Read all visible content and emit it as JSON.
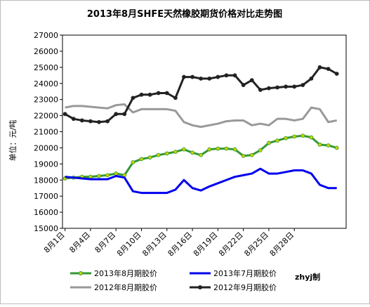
{
  "chart_data": {
    "type": "line",
    "title": "2013年8月SHFE天然橡胶期货价格对比走势图",
    "y_label": "单位：元/吨",
    "annotation": "zhyj制",
    "x": [
      0,
      1,
      2,
      3,
      4,
      5,
      6,
      7,
      8,
      9,
      10,
      11,
      12,
      13,
      14,
      15,
      16,
      17,
      18,
      19,
      20,
      21,
      22,
      23,
      24,
      25,
      26,
      27,
      28,
      29,
      30,
      31,
      32
    ],
    "xlim": [
      -0.3,
      33.1
    ],
    "xticks": [
      {
        "value": 0,
        "label": "8月1日"
      },
      {
        "value": 3,
        "label": "8月4日"
      },
      {
        "value": 6,
        "label": "8月7日"
      },
      {
        "value": 9,
        "label": "8月10日"
      },
      {
        "value": 12,
        "label": "8月13日"
      },
      {
        "value": 15,
        "label": "8月16日"
      },
      {
        "value": 18,
        "label": "8月19日"
      },
      {
        "value": 21,
        "label": "8月22日"
      },
      {
        "value": 24,
        "label": "8月25日"
      },
      {
        "value": 27,
        "label": "8月28日"
      }
    ],
    "ylim": [
      15000,
      27000
    ],
    "yticks": [
      15000,
      16000,
      17000,
      18000,
      19000,
      20000,
      21000,
      22000,
      23000,
      24000,
      25000,
      26000,
      27000
    ],
    "grid": false,
    "series": [
      {
        "name": "2013年8月期胶价",
        "color": "#339933",
        "marker": "#c8d400",
        "values": [
          18100,
          18150,
          18200,
          18200,
          18250,
          18300,
          18400,
          18300,
          19100,
          19300,
          19400,
          19550,
          19650,
          19750,
          19900,
          19700,
          19550,
          19900,
          19950,
          19950,
          19900,
          19500,
          19550,
          19850,
          20300,
          20450,
          20600,
          20700,
          20750,
          20650,
          20200,
          20150,
          20000
        ]
      },
      {
        "name": "2013年7月期胶价",
        "color": "#0000ee",
        "values": [
          18200,
          18150,
          18100,
          18050,
          18050,
          18050,
          18250,
          18150,
          17300,
          17200,
          17200,
          17200,
          17200,
          17400,
          18000,
          17500,
          17350,
          17600,
          17800,
          18000,
          18200,
          18300,
          18400,
          18700,
          18400,
          18400,
          18500,
          18600,
          18600,
          18400,
          17700,
          17500,
          17500
        ]
      },
      {
        "name": "2012年8月期胶价",
        "color": "#999999",
        "values": [
          22500,
          22600,
          22600,
          22550,
          22500,
          22450,
          22650,
          22700,
          22200,
          22400,
          22400,
          22400,
          22400,
          22300,
          21600,
          21400,
          21300,
          21400,
          21500,
          21650,
          21700,
          21700,
          21400,
          21500,
          21400,
          21800,
          21800,
          21700,
          21800,
          22500,
          22400,
          21600,
          21700
        ]
      },
      {
        "name": "2012年9月期胶价",
        "color": "#222222",
        "marker": "#222222",
        "values": [
          22100,
          21800,
          21700,
          21650,
          21600,
          21650,
          22100,
          22100,
          23100,
          23300,
          23300,
          23400,
          23400,
          23100,
          24400,
          24400,
          24300,
          24300,
          24400,
          24500,
          24500,
          23900,
          24200,
          23600,
          23700,
          23750,
          23800,
          23800,
          23900,
          24300,
          25000,
          24900,
          24600
        ]
      }
    ]
  }
}
